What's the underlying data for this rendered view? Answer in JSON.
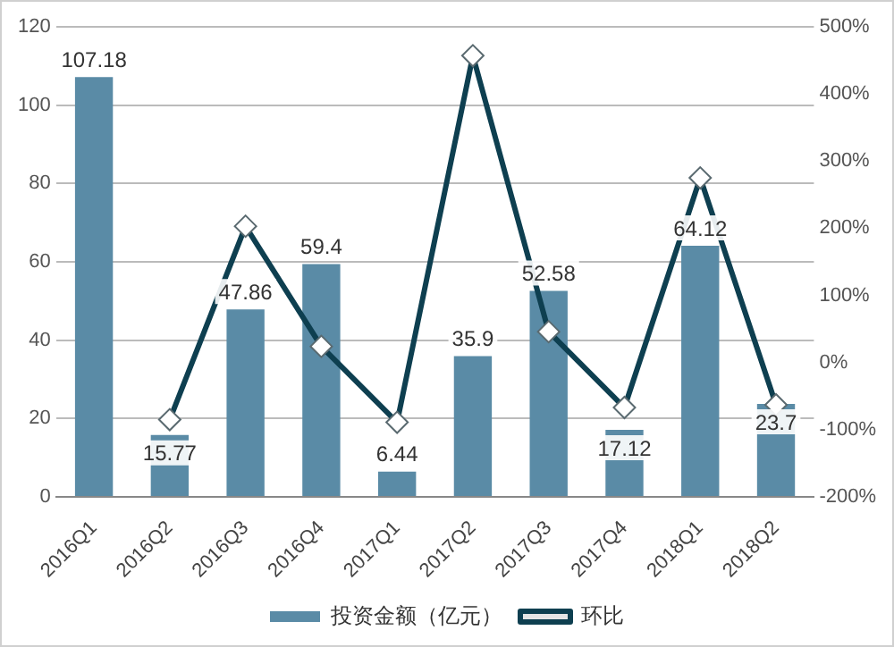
{
  "chart_data": {
    "type": "bar",
    "categories": [
      "2016Q1",
      "2016Q2",
      "2016Q3",
      "2016Q4",
      "2017Q1",
      "2017Q2",
      "2017Q3",
      "2017Q4",
      "2018Q1",
      "2018Q2"
    ],
    "series": [
      {
        "name": "投资金额（亿元）",
        "type": "bar",
        "color": "#5a8ba6",
        "values": [
          107.18,
          15.77,
          47.86,
          59.4,
          6.44,
          35.9,
          52.58,
          17.12,
          64.12,
          23.7
        ],
        "value_labels": [
          "107.18",
          "15.77",
          "47.86",
          "59.4",
          "6.44",
          "35.9",
          "52.58",
          "17.12",
          "64.12",
          "23.7"
        ]
      },
      {
        "name": "环比",
        "type": "line",
        "axis": "y2",
        "color": "#0e3f50",
        "marker": "diamond",
        "values": [
          null,
          -85,
          203,
          24,
          -89,
          457,
          46,
          -67,
          275,
          -63
        ]
      }
    ],
    "ylim": [
      0,
      120
    ],
    "yticks": [
      0,
      20,
      40,
      60,
      80,
      100,
      120
    ],
    "y2lim": [
      -200,
      500
    ],
    "y2ticks": [
      {
        "value": -200,
        "label": "-200%"
      },
      {
        "value": -100,
        "label": "-100%"
      },
      {
        "value": 0,
        "label": "0%"
      },
      {
        "value": 100,
        "label": "100%"
      },
      {
        "value": 200,
        "label": "200%"
      },
      {
        "value": 300,
        "label": "300%"
      },
      {
        "value": 400,
        "label": "400%"
      },
      {
        "value": 500,
        "label": "500%"
      }
    ],
    "grid": "y",
    "line_style": "solid",
    "legend": "bottom"
  }
}
